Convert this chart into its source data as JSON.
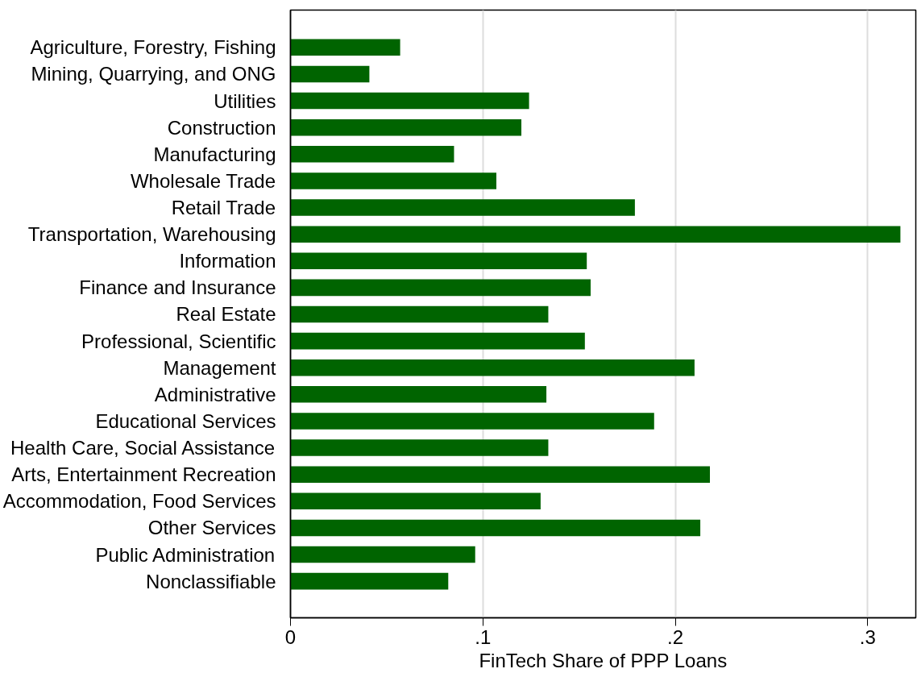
{
  "chart_data": {
    "type": "bar",
    "orientation": "horizontal",
    "xlabel": "FinTech Share of PPP Loans",
    "categories": [
      "Agriculture, Forestry, Fishing",
      "Mining, Quarrying, and ONG",
      "Utilities",
      "Construction",
      "Manufacturing",
      "Wholesale Trade",
      "Retail Trade",
      "Transportation, Warehousing",
      "Information",
      "Finance and Insurance",
      "Real Estate",
      "Professional, Scientific",
      "Management",
      "Administrative",
      "Educational Services",
      "Health Care, Social Assistance",
      "Arts, Entertainment Recreation",
      "Accommodation, Food Services",
      "Other Services",
      "Public Administration",
      "Nonclassifiable"
    ],
    "values": [
      0.057,
      0.041,
      0.124,
      0.12,
      0.085,
      0.107,
      0.179,
      0.317,
      0.154,
      0.156,
      0.134,
      0.153,
      0.21,
      0.133,
      0.189,
      0.134,
      0.218,
      0.13,
      0.213,
      0.096,
      0.082
    ],
    "color": "#006400",
    "xlim": [
      0,
      0.325
    ],
    "xticks": [
      {
        "value": 0,
        "label": "0"
      },
      {
        "value": 0.1,
        "label": ".1"
      },
      {
        "value": 0.2,
        "label": ".2"
      },
      {
        "value": 0.3,
        "label": ".3"
      }
    ],
    "grid": "x"
  }
}
